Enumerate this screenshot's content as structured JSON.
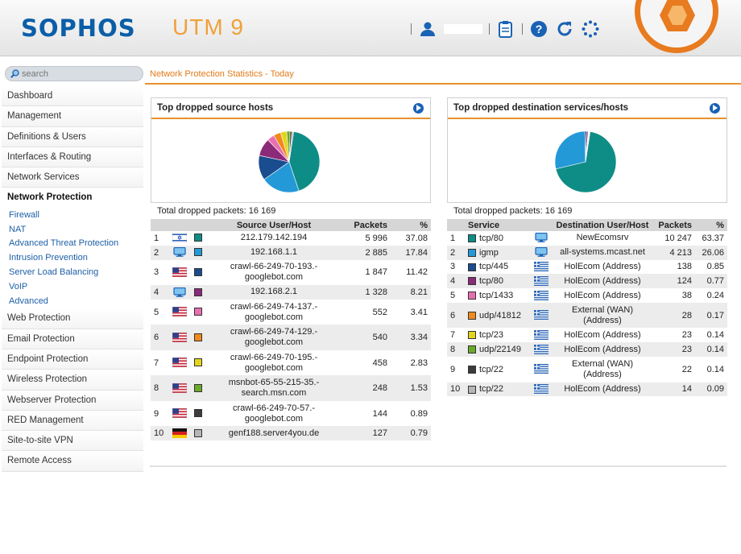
{
  "header": {
    "logo": "SOPHOS",
    "product": "UTM 9",
    "user_name": ""
  },
  "icons": {
    "user": "user-icon",
    "clipboard": "clipboard-icon",
    "help": "help-icon",
    "refresh": "refresh-icon",
    "loading": "loading-spinner-icon",
    "search": "magnifier-icon",
    "go": "arrow-right-circle-icon"
  },
  "colors": {
    "accent": "#e8922c",
    "brand": "#0b5ea8",
    "link": "#1d5fa8"
  },
  "search": {
    "placeholder": "search"
  },
  "sidebar": {
    "items": [
      {
        "label": "Dashboard"
      },
      {
        "label": "Management"
      },
      {
        "label": "Definitions & Users"
      },
      {
        "label": "Interfaces & Routing"
      },
      {
        "label": "Network Services"
      },
      {
        "label": "Network Protection",
        "active": true
      }
    ],
    "subitems": [
      {
        "label": "Firewall"
      },
      {
        "label": "NAT"
      },
      {
        "label": "Advanced Threat Protection"
      },
      {
        "label": "Intrusion Prevention"
      },
      {
        "label": "Server Load Balancing"
      },
      {
        "label": "VoIP"
      },
      {
        "label": "Advanced"
      }
    ],
    "items_after": [
      {
        "label": "Web Protection"
      },
      {
        "label": "Email Protection"
      },
      {
        "label": "Endpoint Protection"
      },
      {
        "label": "Wireless Protection"
      },
      {
        "label": "Webserver Protection"
      },
      {
        "label": "RED Management"
      },
      {
        "label": "Site-to-site VPN"
      },
      {
        "label": "Remote Access"
      }
    ]
  },
  "breadcrumb": "Network Protection Statistics - Today",
  "panels": {
    "left": {
      "title": "Top dropped source hosts",
      "total": "Total dropped packets: 16 169",
      "columns": [
        "",
        "",
        "",
        "Source User/Host",
        "Packets",
        "%"
      ],
      "rows": [
        {
          "n": "1",
          "flag": "il",
          "color": "#0e8d86",
          "host": "212.179.142.194",
          "packets": "5 996",
          "pct": "37.08"
        },
        {
          "n": "2",
          "flag": "lan",
          "color": "#2499d8",
          "host": "192.168.1.1",
          "packets": "2 885",
          "pct": "17.84"
        },
        {
          "n": "3",
          "flag": "us",
          "color": "#1a4d8f",
          "host": "crawl-66-249-70-193.-\ngooglebot.com",
          "packets": "1 847",
          "pct": "11.42"
        },
        {
          "n": "4",
          "flag": "lan",
          "color": "#8b2a78",
          "host": "192.168.2.1",
          "packets": "1 328",
          "pct": "8.21"
        },
        {
          "n": "5",
          "flag": "us",
          "color": "#e86fb0",
          "host": "crawl-66-249-74-137.-\ngooglebot.com",
          "packets": "552",
          "pct": "3.41"
        },
        {
          "n": "6",
          "flag": "us",
          "color": "#f08a1c",
          "host": "crawl-66-249-74-129.-\ngooglebot.com",
          "packets": "540",
          "pct": "3.34"
        },
        {
          "n": "7",
          "flag": "us",
          "color": "#e3d51a",
          "host": "crawl-66-249-70-195.-\ngooglebot.com",
          "packets": "458",
          "pct": "2.83"
        },
        {
          "n": "8",
          "flag": "us",
          "color": "#6aa92a",
          "host": "msnbot-65-55-215-35.-\nsearch.msn.com",
          "packets": "248",
          "pct": "1.53"
        },
        {
          "n": "9",
          "flag": "us",
          "color": "#3c3c3c",
          "host": "crawl-66-249-70-57.-\ngooglebot.com",
          "packets": "144",
          "pct": "0.89"
        },
        {
          "n": "10",
          "flag": "de",
          "color": "#b5b5b5",
          "host": "genf188.server4you.de",
          "packets": "127",
          "pct": "0.79"
        }
      ]
    },
    "right": {
      "title": "Top dropped destination services/hosts",
      "total": "Total dropped packets: 16 169",
      "columns": [
        "",
        "Service",
        "",
        "Destination User/Host",
        "Packets",
        "%"
      ],
      "rows": [
        {
          "n": "1",
          "color": "#0e8d86",
          "service": "tcp/80",
          "flag": "lan",
          "host": "NewEcomsrv",
          "packets": "10 247",
          "pct": "63.37"
        },
        {
          "n": "2",
          "color": "#2499d8",
          "service": "igmp",
          "flag": "lan",
          "host": "all-systems.mcast.net",
          "packets": "4 213",
          "pct": "26.06"
        },
        {
          "n": "3",
          "color": "#1a4d8f",
          "service": "tcp/445",
          "flag": "gr",
          "host": "HolEcom (Address)",
          "packets": "138",
          "pct": "0.85"
        },
        {
          "n": "4",
          "color": "#8b2a78",
          "service": "tcp/80",
          "flag": "gr",
          "host": "HolEcom (Address)",
          "packets": "124",
          "pct": "0.77"
        },
        {
          "n": "5",
          "color": "#e86fb0",
          "service": "tcp/1433",
          "flag": "gr",
          "host": "HolEcom (Address)",
          "packets": "38",
          "pct": "0.24"
        },
        {
          "n": "6",
          "color": "#f08a1c",
          "service": "udp/41812",
          "flag": "gr",
          "host": "External (WAN)\n(Address)",
          "packets": "28",
          "pct": "0.17"
        },
        {
          "n": "7",
          "color": "#e3d51a",
          "service": "tcp/23",
          "flag": "gr",
          "host": "HolEcom (Address)",
          "packets": "23",
          "pct": "0.14"
        },
        {
          "n": "8",
          "color": "#6aa92a",
          "service": "udp/22149",
          "flag": "gr",
          "host": "HolEcom (Address)",
          "packets": "23",
          "pct": "0.14"
        },
        {
          "n": "9",
          "color": "#3c3c3c",
          "service": "tcp/22",
          "flag": "gr",
          "host": "External (WAN)\n(Address)",
          "packets": "22",
          "pct": "0.14"
        },
        {
          "n": "10",
          "color": "#b5b5b5",
          "service": "tcp/22",
          "flag": "gr",
          "host": "HolEcom (Address)",
          "packets": "14",
          "pct": "0.09"
        }
      ]
    }
  },
  "chart_data": [
    {
      "type": "pie",
      "title": "Top dropped source hosts",
      "categories": [
        "212.179.142.194",
        "192.168.1.1",
        "crawl-66-249-70-193.-googlebot.com",
        "192.168.2.1",
        "crawl-66-249-74-137.-googlebot.com",
        "crawl-66-249-74-129.-googlebot.com",
        "crawl-66-249-70-195.-googlebot.com",
        "msnbot-65-55-215-35.-search.msn.com",
        "crawl-66-249-70-57.-googlebot.com",
        "genf188.server4you.de"
      ],
      "values": [
        5996,
        2885,
        1847,
        1328,
        552,
        540,
        458,
        248,
        144,
        127
      ],
      "colors": [
        "#0e8d86",
        "#2499d8",
        "#1a4d8f",
        "#8b2a78",
        "#e86fb0",
        "#f08a1c",
        "#e3d51a",
        "#6aa92a",
        "#3c3c3c",
        "#b5b5b5"
      ],
      "total": 16169
    },
    {
      "type": "pie",
      "title": "Top dropped destination services/hosts",
      "categories": [
        "tcp/80",
        "igmp",
        "tcp/445",
        "tcp/80",
        "tcp/1433",
        "udp/41812",
        "tcp/23",
        "udp/22149",
        "tcp/22",
        "tcp/22"
      ],
      "values": [
        10247,
        4213,
        138,
        124,
        38,
        28,
        23,
        23,
        22,
        14
      ],
      "colors": [
        "#0e8d86",
        "#2499d8",
        "#1a4d8f",
        "#8b2a78",
        "#e86fb0",
        "#f08a1c",
        "#e3d51a",
        "#6aa92a",
        "#3c3c3c",
        "#b5b5b5"
      ],
      "total": 16169
    }
  ]
}
